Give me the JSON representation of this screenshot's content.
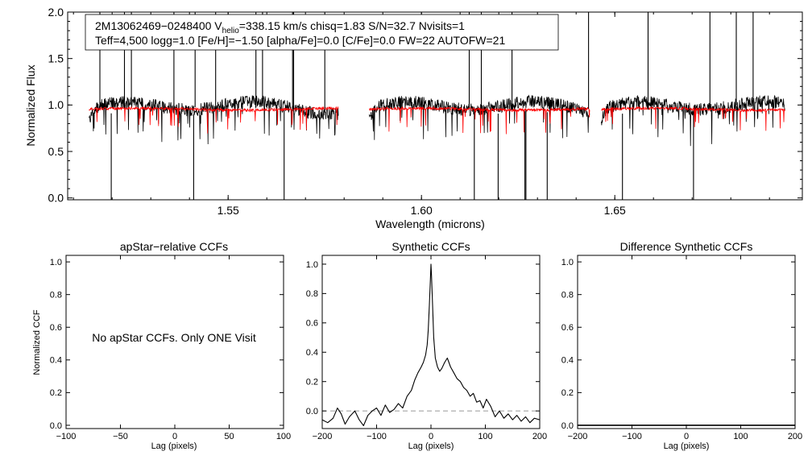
{
  "figure_id": "2M13062469-0248400",
  "info_line1": {
    "pre": "2M13062469−0248400  V",
    "sub": "helio",
    "post": "=338.15 km/s  chisq=1.83  S/N=32.7  Nvisits=1"
  },
  "info_line2": "Teff=4,500 logg=1.0 [Fe/H]=−1.50 [alpha/Fe]=0.0 [C/Fe]=0.0 FW=22 AUTOFW=21",
  "chart_data": [
    {
      "id": "spectrum",
      "type": "line",
      "title": "",
      "xlabel": "Wavelength (microns)",
      "ylabel": "Normalized Flux",
      "xlim": [
        1.5085,
        1.6985
      ],
      "ylim": [
        -0.02,
        2.0
      ],
      "xticks": [
        1.55,
        1.6,
        1.65
      ],
      "xtick_labels": [
        "1.55",
        "1.60",
        "1.65"
      ],
      "yticks": [
        0.0,
        0.5,
        1.0,
        1.5,
        2.0
      ],
      "ytick_labels": [
        "0.0",
        "0.5",
        "1.0",
        "1.5",
        "2.0"
      ],
      "chips": [
        [
          1.514,
          1.5785
        ],
        [
          1.5865,
          1.6435
        ],
        [
          1.6465,
          1.694
        ]
      ],
      "series": [
        {
          "name": "observed",
          "color": "#000000",
          "level": 0.96
        },
        {
          "name": "model",
          "color": "#ff0000",
          "level": 0.955
        }
      ]
    },
    {
      "id": "apstar-ccf",
      "type": "line",
      "title": "apStar−relative CCFs",
      "xlabel": "Lag (pixels)",
      "ylabel": "Normalized CCF",
      "xlim": [
        -100,
        100
      ],
      "ylim": [
        -0.02,
        1.04
      ],
      "xticks": [
        -100,
        -50,
        0,
        50,
        100
      ],
      "xtick_labels": [
        "−100",
        "−50",
        "0",
        "50",
        "100"
      ],
      "yticks": [
        0.0,
        0.2,
        0.4,
        0.6,
        0.8,
        1.0
      ],
      "ytick_labels": [
        "0.0",
        "0.2",
        "0.4",
        "0.6",
        "0.8",
        "1.0"
      ],
      "annotation": "No apStar CCFs.  Only ONE Visit",
      "series": []
    },
    {
      "id": "synthetic-ccf",
      "type": "line",
      "title": "Synthetic CCFs",
      "xlabel": "Lag (pixels)",
      "ylabel": "",
      "xlim": [
        -200,
        200
      ],
      "ylim": [
        -0.12,
        1.06
      ],
      "xticks": [
        -200,
        -100,
        0,
        100,
        200
      ],
      "xtick_labels": [
        "−200",
        "−100",
        "0",
        "100",
        "200"
      ],
      "yticks": [
        0.0,
        0.2,
        0.4,
        0.6,
        0.8,
        1.0
      ],
      "ytick_labels": [
        "0.0",
        "0.2",
        "0.4",
        "0.6",
        "0.8",
        "1.0"
      ],
      "zero_line": 0.0,
      "series": [
        {
          "name": "synthetic",
          "color": "#000000",
          "x": [
            -200,
            -190,
            -180,
            -172,
            -165,
            -158,
            -150,
            -140,
            -132,
            -124,
            -116,
            -108,
            -100,
            -92,
            -84,
            -76,
            -68,
            -60,
            -52,
            -44,
            -36,
            -30,
            -24,
            -18,
            -14,
            -10,
            -7,
            -5,
            -3,
            -1,
            0,
            1,
            3,
            5,
            8,
            12,
            16,
            20,
            25,
            30,
            36,
            42,
            48,
            54,
            60,
            66,
            72,
            78,
            84,
            90,
            96,
            102,
            110,
            118,
            126,
            134,
            142,
            150,
            158,
            166,
            174,
            182,
            190,
            200
          ],
          "y": [
            -0.06,
            -0.08,
            -0.05,
            0.02,
            -0.02,
            -0.09,
            -0.04,
            0.0,
            -0.06,
            -0.1,
            -0.03,
            0.0,
            0.02,
            -0.03,
            0.04,
            -0.01,
            0.01,
            0.05,
            0.02,
            0.1,
            0.14,
            0.21,
            0.26,
            0.3,
            0.33,
            0.38,
            0.45,
            0.55,
            0.72,
            0.9,
            1.0,
            0.92,
            0.72,
            0.5,
            0.36,
            0.3,
            0.27,
            0.29,
            0.33,
            0.36,
            0.3,
            0.26,
            0.22,
            0.2,
            0.16,
            0.14,
            0.1,
            0.12,
            0.06,
            0.07,
            0.02,
            0.08,
            0.03,
            -0.04,
            0.0,
            -0.05,
            -0.02,
            -0.06,
            -0.03,
            -0.07,
            -0.04,
            -0.08,
            -0.05,
            -0.06
          ]
        }
      ]
    },
    {
      "id": "difference-ccf",
      "type": "line",
      "title": "Difference Synthetic CCFs",
      "xlabel": "Lag (pixels)",
      "ylabel": "",
      "xlim": [
        -200,
        200
      ],
      "ylim": [
        -0.02,
        1.04
      ],
      "xticks": [
        -200,
        -100,
        0,
        100,
        200
      ],
      "xtick_labels": [
        "−200",
        "−100",
        "0",
        "100",
        "200"
      ],
      "yticks": [
        0.0,
        0.2,
        0.4,
        0.6,
        0.8,
        1.0
      ],
      "ytick_labels": [
        "0.0",
        "0.2",
        "0.4",
        "0.6",
        "0.8",
        "1.0"
      ],
      "series": [
        {
          "name": "difference",
          "color": "#000000",
          "x": [
            -200,
            200
          ],
          "y": [
            0.0,
            0.0
          ]
        }
      ]
    }
  ]
}
